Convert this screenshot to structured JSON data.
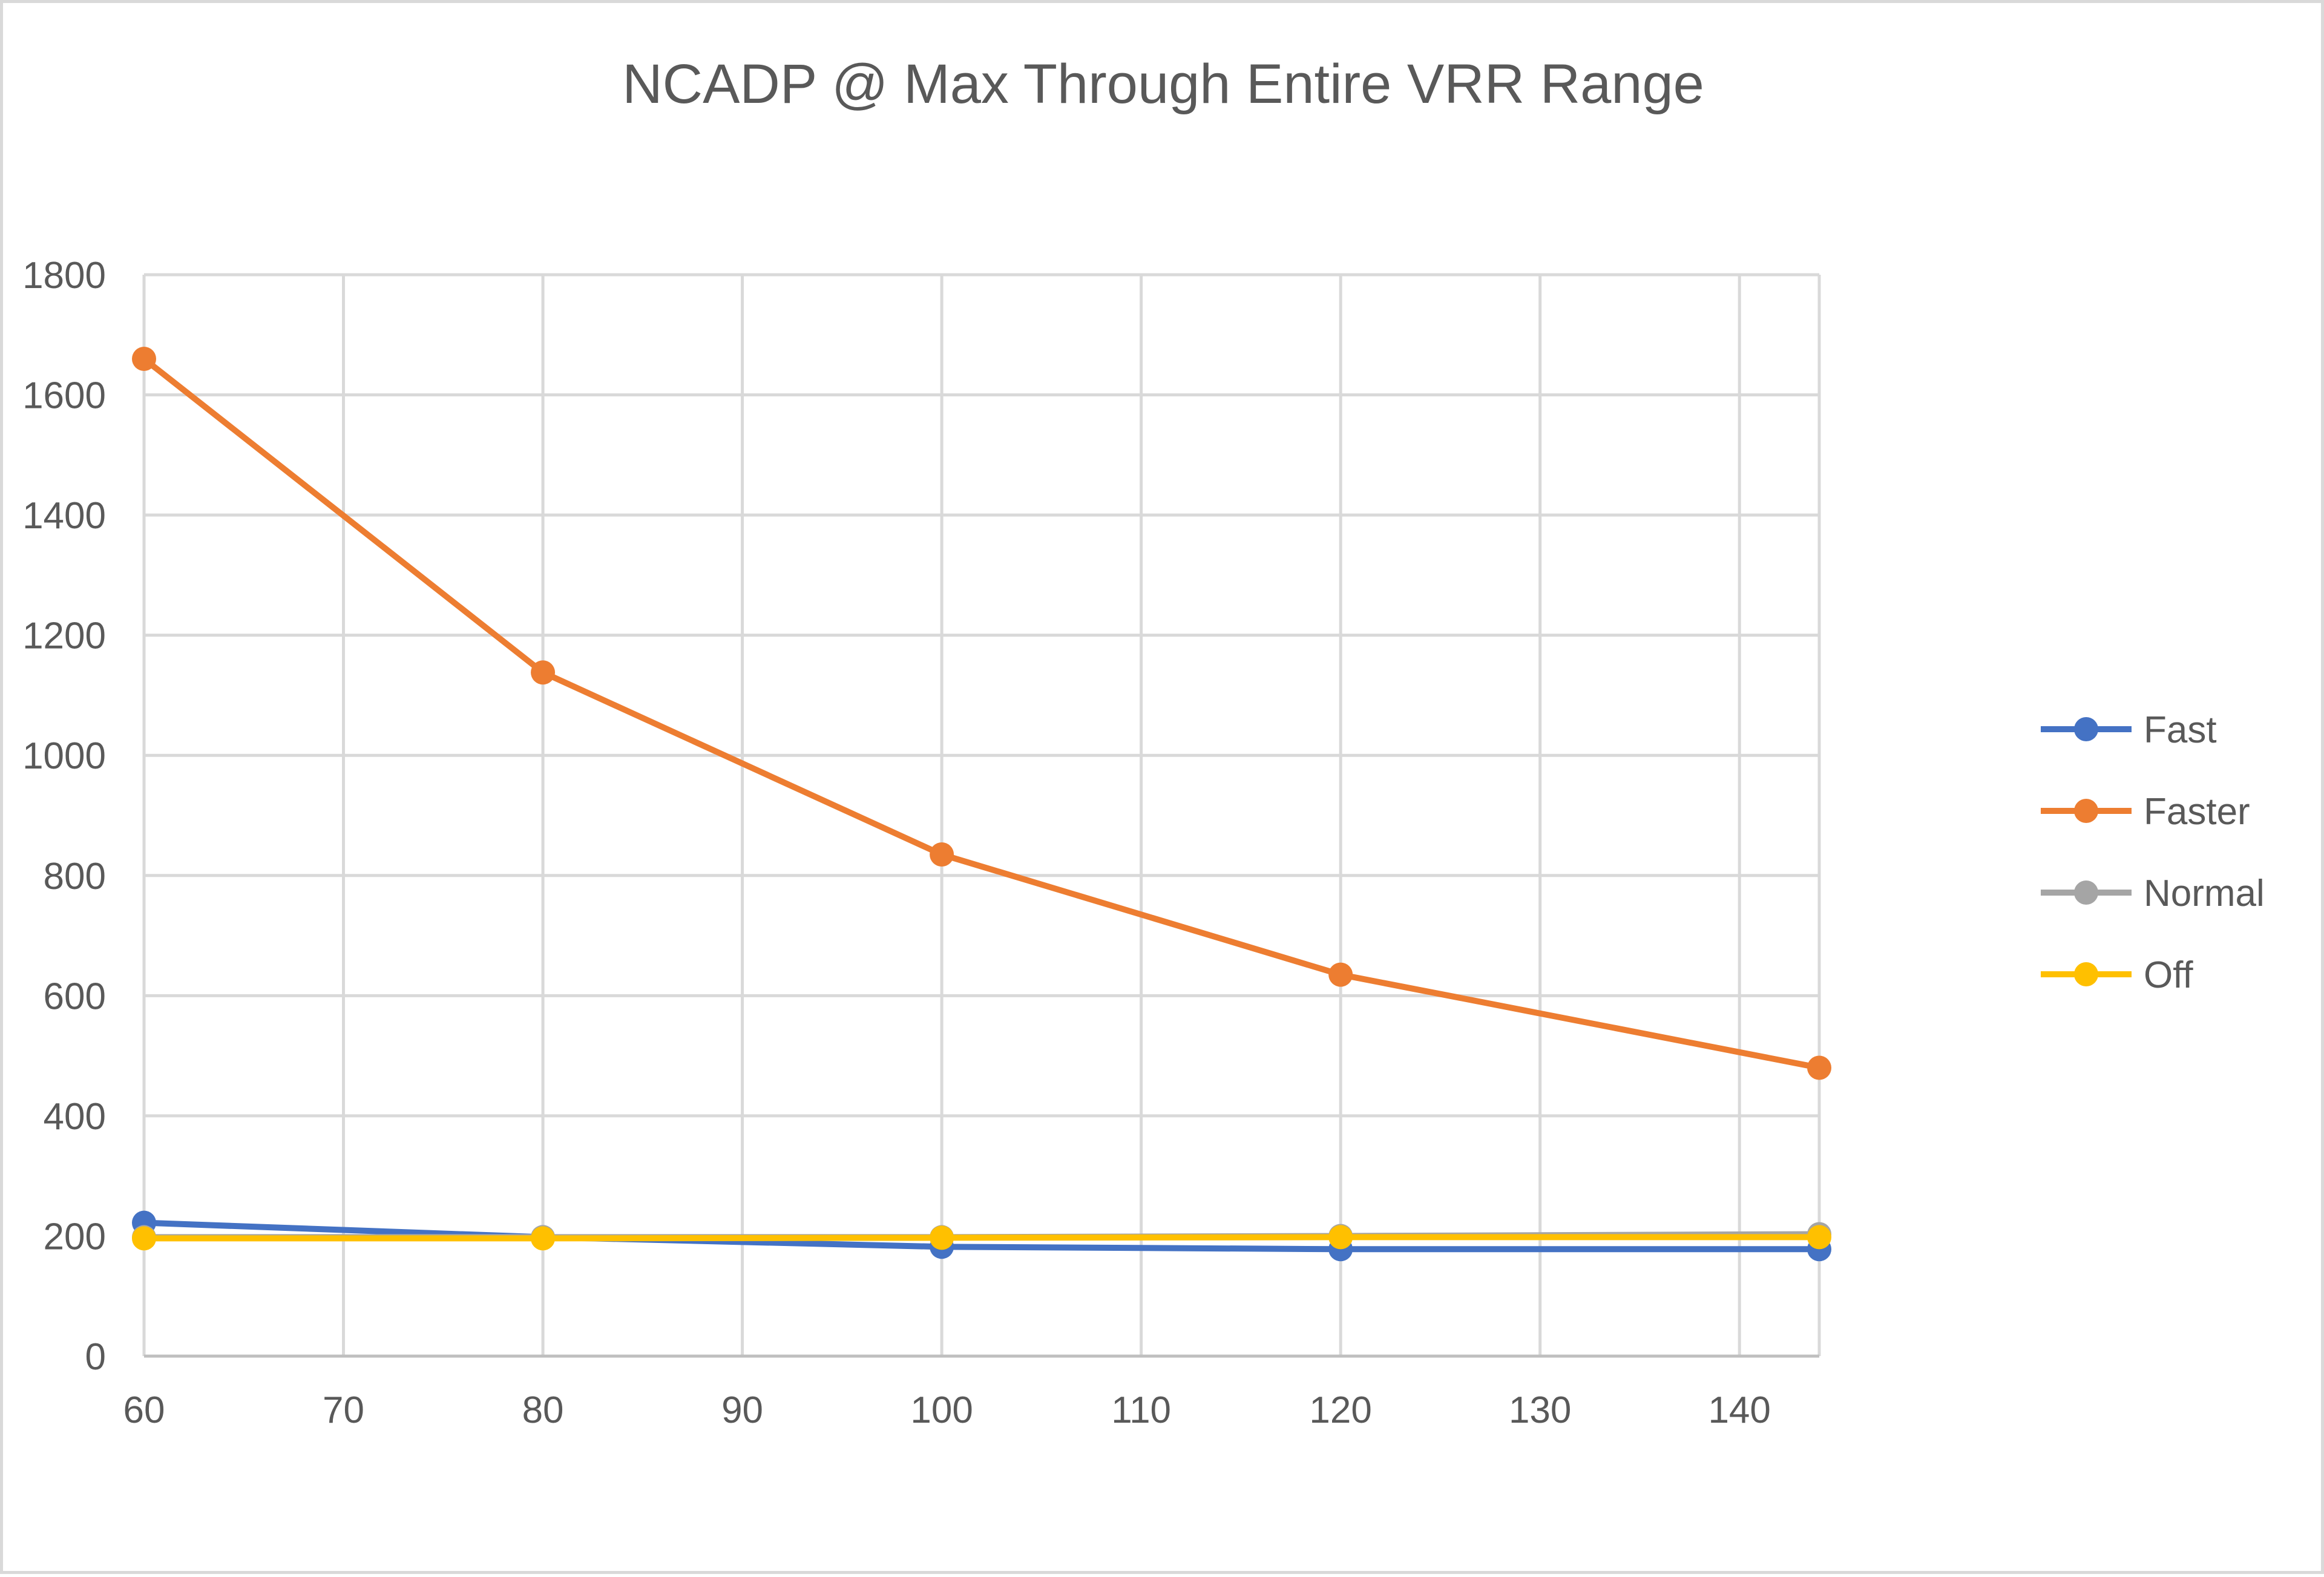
{
  "chart_data": {
    "type": "line",
    "title": "NCADP @ Max Through Entire VRR Range",
    "xlabel": "",
    "ylabel": "",
    "xlim": [
      60,
      144
    ],
    "ylim": [
      0,
      1800
    ],
    "x_ticks": [
      60,
      70,
      80,
      90,
      100,
      110,
      120,
      130,
      140
    ],
    "y_ticks": [
      0,
      200,
      400,
      600,
      800,
      1000,
      1200,
      1400,
      1600,
      1800
    ],
    "x": [
      60,
      80,
      100,
      120,
      144
    ],
    "grid": true,
    "legend_position": "right",
    "series": [
      {
        "name": "Fast",
        "color": "#4472C4",
        "values": [
          222,
          198,
          182,
          178,
          178
        ]
      },
      {
        "name": "Faster",
        "color": "#ED7D31",
        "values": [
          1660,
          1138,
          835,
          635,
          480
        ]
      },
      {
        "name": "Normal",
        "color": "#A5A5A5",
        "values": [
          198,
          198,
          198,
          200,
          203
        ]
      },
      {
        "name": "Off",
        "color": "#FFC000",
        "values": [
          196,
          196,
          197,
          198,
          198
        ]
      }
    ]
  }
}
